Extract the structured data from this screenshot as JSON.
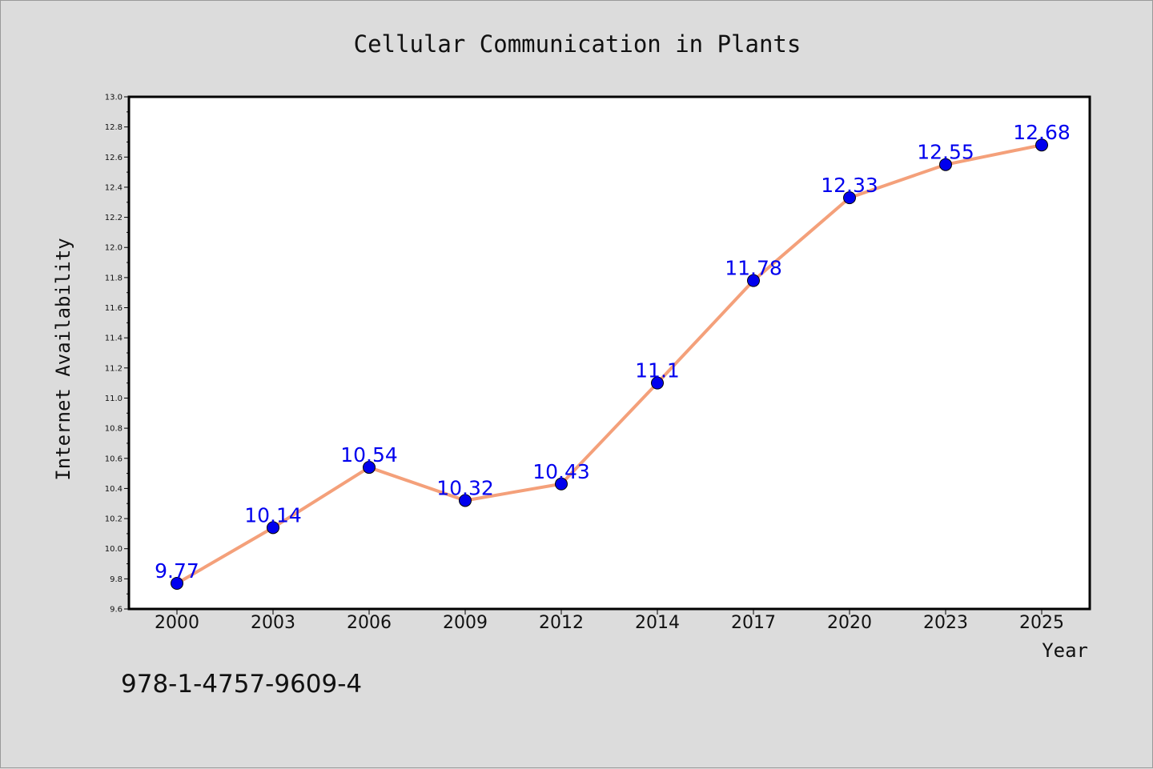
{
  "colors": {
    "background": "#dcdcdc",
    "plot_background": "#ffffff",
    "line": "#f4a07a",
    "marker": "#0000ee",
    "data_label": "#0000ee"
  },
  "isbn": "978-1-4757-9609-4",
  "chart_data": {
    "type": "line",
    "title": "Cellular Communication in Plants",
    "xlabel": "Year",
    "ylabel": "Internet Availability",
    "categories": [
      "2000",
      "2003",
      "2006",
      "2009",
      "2012",
      "2014",
      "2017",
      "2020",
      "2023",
      "2025"
    ],
    "series": [
      {
        "values": [
          9.77,
          10.14,
          10.54,
          10.32,
          10.43,
          11.1,
          11.78,
          12.33,
          12.55,
          12.68
        ],
        "data_labels": [
          "9.77",
          "10.14",
          "10.54",
          "10.32",
          "10.43",
          "11.1",
          "11.78",
          "12.33",
          "12.55",
          "12.68"
        ]
      }
    ],
    "ylim": [
      9.6,
      13.0
    ],
    "yticks": [
      "9.6",
      "9.8",
      "10.0",
      "10.2",
      "10.4",
      "10.6",
      "10.8",
      "11.0",
      "11.2",
      "11.4",
      "11.6",
      "11.8",
      "12.0",
      "12.2",
      "12.4",
      "12.6",
      "12.8",
      "13.0"
    ],
    "grid": false,
    "legend": "none"
  }
}
